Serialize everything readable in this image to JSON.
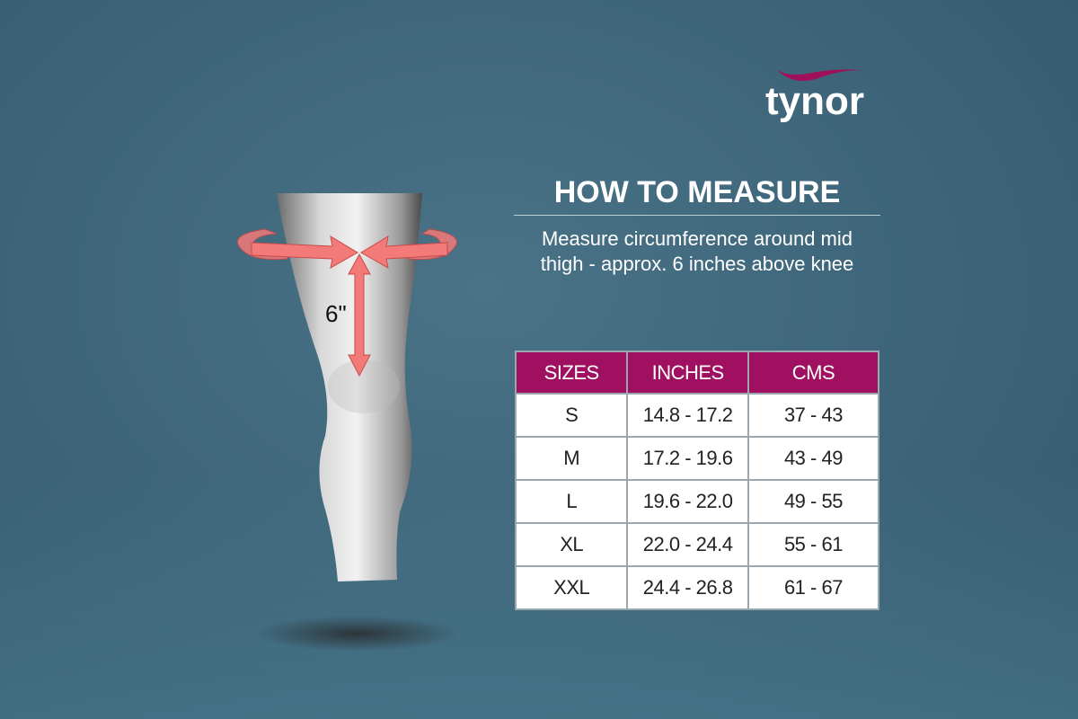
{
  "brand": {
    "logo_text": "tynor",
    "swoosh_color": "#a0105a"
  },
  "measure": {
    "label": "6\""
  },
  "header": {
    "title": "HOW TO MEASURE",
    "description_line1": "Measure circumference around mid",
    "description_line2": "thigh - approx. 6 inches above knee"
  },
  "size_table": {
    "headers": [
      "SIZES",
      "INCHES",
      "CMS"
    ],
    "header_color": "#a01060",
    "rows": [
      [
        "S",
        "14.8 - 17.2",
        "37 - 43"
      ],
      [
        "M",
        "17.2 - 19.6",
        "43 - 49"
      ],
      [
        "L",
        "19.6 - 22.0",
        "49 - 55"
      ],
      [
        "XL",
        "22.0 - 24.4",
        "55 - 61"
      ],
      [
        "XXL",
        "24.4 - 26.8",
        "61 - 67"
      ]
    ]
  }
}
